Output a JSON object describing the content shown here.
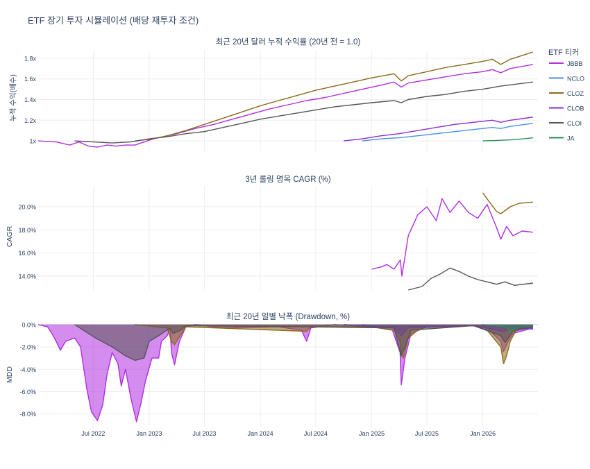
{
  "figure_title": "ETF 장기 투자 시뮬레이션 (배당 재투자 조건)",
  "legend": {
    "title": "ETF 티커",
    "placement": "right",
    "items": [
      {
        "name": "JBBB",
        "color": "#b02ee0"
      },
      {
        "name": "NCLO",
        "color": "#4a8ee8"
      },
      {
        "name": "CLOZ",
        "color": "#8a6a1a"
      },
      {
        "name": "CLOB",
        "color": "#8b2ad6"
      },
      {
        "name": "CLOI",
        "color": "#555555"
      },
      {
        "name": "JA",
        "color": "#2e8b57"
      }
    ]
  },
  "chart_data": [
    {
      "type": "line",
      "title": "최근 20년 달러 누적 수익률 (20년 전 = 1.0)",
      "xlabel": "",
      "ylabel": "누적 수익(배수)",
      "ylim": [
        0.9,
        1.88
      ],
      "yticks": [
        {
          "v": 1.0,
          "label": "1x"
        },
        {
          "v": 1.2,
          "label": "1.2x"
        },
        {
          "v": 1.4,
          "label": "1.4x"
        },
        {
          "v": 1.6,
          "label": "1.6x"
        },
        {
          "v": 1.8,
          "label": "1.8x"
        }
      ],
      "xlim": [
        "2022-01-01",
        "2026-07-01"
      ],
      "grid": true,
      "series": [
        {
          "name": "JBBB",
          "x": [
            "2022-01-01",
            "2022-03-01",
            "2022-04-15",
            "2022-05-15",
            "2022-06-15",
            "2022-07-15",
            "2022-08-15",
            "2022-09-15",
            "2022-10-15",
            "2022-11-15",
            "2022-12-15",
            "2023-01-15",
            "2023-02-15",
            "2023-04-01",
            "2023-06-01",
            "2023-08-01",
            "2023-10-01",
            "2023-12-01",
            "2024-02-01",
            "2024-04-01",
            "2024-06-01",
            "2024-08-01",
            "2024-10-01",
            "2024-12-01",
            "2025-02-01",
            "2025-03-15",
            "2025-04-08",
            "2025-05-01",
            "2025-07-01",
            "2025-09-01",
            "2025-11-01",
            "2026-01-01",
            "2026-02-01",
            "2026-03-01",
            "2026-04-01",
            "2026-06-15"
          ],
          "y": [
            1.0,
            0.99,
            0.96,
            0.99,
            0.95,
            0.94,
            0.96,
            0.95,
            0.96,
            0.96,
            0.99,
            1.02,
            1.04,
            1.07,
            1.12,
            1.16,
            1.21,
            1.26,
            1.31,
            1.35,
            1.39,
            1.42,
            1.46,
            1.5,
            1.54,
            1.57,
            1.52,
            1.56,
            1.59,
            1.62,
            1.65,
            1.67,
            1.69,
            1.66,
            1.7,
            1.74
          ]
        },
        {
          "name": "NCLO",
          "x": [
            "2024-12-01",
            "2025-02-01",
            "2025-04-01",
            "2025-06-01",
            "2025-08-01",
            "2025-10-01",
            "2025-12-01",
            "2026-02-01",
            "2026-03-01",
            "2026-04-01",
            "2026-06-15"
          ],
          "y": [
            1.0,
            1.02,
            1.03,
            1.05,
            1.07,
            1.09,
            1.11,
            1.13,
            1.12,
            1.14,
            1.17
          ]
        },
        {
          "name": "CLOZ",
          "x": [
            "2022-11-15",
            "2023-01-15",
            "2023-03-01",
            "2023-05-01",
            "2023-07-01",
            "2023-09-01",
            "2023-11-01",
            "2024-01-01",
            "2024-03-01",
            "2024-05-01",
            "2024-07-01",
            "2024-09-01",
            "2024-11-01",
            "2025-01-01",
            "2025-03-15",
            "2025-04-08",
            "2025-05-01",
            "2025-07-01",
            "2025-09-01",
            "2025-11-01",
            "2026-01-01",
            "2026-02-01",
            "2026-03-01",
            "2026-04-01",
            "2026-06-15"
          ],
          "y": [
            1.0,
            1.02,
            1.05,
            1.1,
            1.16,
            1.22,
            1.28,
            1.34,
            1.39,
            1.44,
            1.49,
            1.53,
            1.57,
            1.61,
            1.65,
            1.58,
            1.63,
            1.67,
            1.71,
            1.74,
            1.77,
            1.79,
            1.74,
            1.79,
            1.86
          ]
        },
        {
          "name": "CLOB",
          "x": [
            "2024-10-01",
            "2024-12-01",
            "2025-02-01",
            "2025-04-01",
            "2025-06-01",
            "2025-08-01",
            "2025-10-01",
            "2025-12-01",
            "2026-02-01",
            "2026-03-01",
            "2026-04-01",
            "2026-06-15"
          ],
          "y": [
            1.0,
            1.02,
            1.05,
            1.07,
            1.1,
            1.13,
            1.16,
            1.18,
            1.2,
            1.18,
            1.2,
            1.23
          ]
        },
        {
          "name": "CLOI",
          "x": [
            "2022-05-01",
            "2022-07-01",
            "2022-09-01",
            "2022-11-01",
            "2023-01-01",
            "2023-03-01",
            "2023-05-01",
            "2023-07-01",
            "2023-09-01",
            "2023-11-01",
            "2024-01-01",
            "2024-03-01",
            "2024-05-01",
            "2024-07-01",
            "2024-09-01",
            "2024-11-01",
            "2025-01-01",
            "2025-03-15",
            "2025-04-08",
            "2025-05-01",
            "2025-07-01",
            "2025-09-01",
            "2025-11-01",
            "2026-01-01",
            "2026-03-01",
            "2026-06-15"
          ],
          "y": [
            1.0,
            0.99,
            0.98,
            0.99,
            1.02,
            1.04,
            1.07,
            1.09,
            1.13,
            1.17,
            1.21,
            1.24,
            1.27,
            1.3,
            1.33,
            1.35,
            1.37,
            1.39,
            1.37,
            1.4,
            1.43,
            1.45,
            1.48,
            1.5,
            1.53,
            1.57
          ]
        },
        {
          "name": "JA",
          "x": [
            "2026-01-01",
            "2026-02-15",
            "2026-04-01",
            "2026-05-15",
            "2026-06-15"
          ],
          "y": [
            1.0,
            1.005,
            1.01,
            1.02,
            1.03
          ]
        }
      ]
    },
    {
      "type": "line",
      "title": "3년 롤링 명목 CAGR (%)",
      "xlabel": "",
      "ylabel": "CAGR",
      "ylim": [
        12.8,
        21.8
      ],
      "yticks": [
        {
          "v": 14,
          "label": "14.0%"
        },
        {
          "v": 16,
          "label": "16.0%"
        },
        {
          "v": 18,
          "label": "18.0%"
        },
        {
          "v": 20,
          "label": "20.0%"
        }
      ],
      "xlim": [
        "2022-01-01",
        "2026-07-01"
      ],
      "grid": true,
      "series": [
        {
          "name": "JBBB",
          "x": [
            "2025-01-01",
            "2025-02-01",
            "2025-02-20",
            "2025-03-15",
            "2025-04-05",
            "2025-04-10",
            "2025-05-01",
            "2025-06-01",
            "2025-07-01",
            "2025-08-01",
            "2025-08-20",
            "2025-09-15",
            "2025-10-15",
            "2025-11-15",
            "2025-12-15",
            "2026-01-15",
            "2026-02-15",
            "2026-03-01",
            "2026-03-20",
            "2026-04-10",
            "2026-05-10",
            "2026-06-15"
          ],
          "y": [
            14.6,
            14.8,
            15.0,
            14.6,
            15.4,
            14.0,
            17.5,
            19.3,
            20.0,
            18.8,
            20.7,
            19.5,
            20.5,
            19.5,
            19.0,
            20.2,
            18.2,
            17.2,
            18.3,
            17.5,
            17.9,
            17.8
          ]
        },
        {
          "name": "CLOZ",
          "x": [
            "2026-01-01",
            "2026-01-20",
            "2026-02-15",
            "2026-03-01",
            "2026-04-01",
            "2026-05-01",
            "2026-06-15"
          ],
          "y": [
            21.2,
            20.5,
            19.6,
            19.4,
            20.0,
            20.3,
            20.4
          ]
        },
        {
          "name": "CLOI",
          "x": [
            "2025-05-01",
            "2025-06-15",
            "2025-07-15",
            "2025-08-15",
            "2025-09-15",
            "2025-10-15",
            "2025-11-15",
            "2025-12-15",
            "2026-01-15",
            "2026-02-15",
            "2026-03-15",
            "2026-04-15",
            "2026-06-15"
          ],
          "y": [
            12.8,
            13.1,
            13.8,
            14.2,
            14.7,
            14.4,
            14.0,
            13.7,
            13.5,
            13.3,
            13.5,
            13.2,
            13.4
          ]
        }
      ]
    },
    {
      "type": "area",
      "title": "최근 20년 일별 낙폭 (Drawdown, %)",
      "xlabel": "",
      "ylabel": "MDD",
      "ylim": [
        -9.2,
        0.3
      ],
      "yticks": [
        {
          "v": 0,
          "label": "0.0%"
        },
        {
          "v": -2,
          "label": "-2.0%"
        },
        {
          "v": -4,
          "label": "-4.0%"
        },
        {
          "v": -6,
          "label": "-6.0%"
        },
        {
          "v": -8,
          "label": "-8.0%"
        }
      ],
      "xlim": [
        "2022-01-01",
        "2026-07-01"
      ],
      "xticks": [
        {
          "v": "2022-07-01",
          "label": "Jul 2022"
        },
        {
          "v": "2023-01-01",
          "label": "Jan 2023"
        },
        {
          "v": "2023-07-01",
          "label": "Jul 2023"
        },
        {
          "v": "2024-01-01",
          "label": "Jan 2024"
        },
        {
          "v": "2024-07-01",
          "label": "Jul 2024"
        },
        {
          "v": "2025-01-01",
          "label": "Jan 2025"
        },
        {
          "v": "2025-07-01",
          "label": "Jul 2025"
        },
        {
          "v": "2026-01-01",
          "label": "Jan 2026"
        }
      ],
      "grid": true,
      "series": [
        {
          "name": "JBBB",
          "x": [
            "2022-01-01",
            "2022-02-01",
            "2022-02-15",
            "2022-03-01",
            "2022-03-15",
            "2022-04-01",
            "2022-05-01",
            "2022-05-20",
            "2022-06-10",
            "2022-06-25",
            "2022-07-15",
            "2022-08-01",
            "2022-08-15",
            "2022-09-01",
            "2022-09-20",
            "2022-10-01",
            "2022-10-15",
            "2022-11-01",
            "2022-11-20",
            "2022-12-05",
            "2022-12-20",
            "2023-01-10",
            "2023-02-01",
            "2023-02-10",
            "2023-03-01",
            "2023-03-10",
            "2023-03-15",
            "2023-03-25",
            "2023-04-10",
            "2023-05-01",
            "2023-06-01",
            "2023-09-01",
            "2024-03-01",
            "2024-05-15",
            "2024-06-01",
            "2024-06-15",
            "2024-09-01",
            "2025-01-01",
            "2025-03-10",
            "2025-04-04",
            "2025-04-08",
            "2025-04-20",
            "2025-05-10",
            "2025-07-01",
            "2025-12-01",
            "2026-01-15",
            "2026-03-01",
            "2026-03-10",
            "2026-03-25",
            "2026-04-10",
            "2026-06-15"
          ],
          "y": [
            0,
            -0.2,
            -0.8,
            -1.5,
            -2.3,
            -1.5,
            -1.2,
            -2.0,
            -5.8,
            -7.8,
            -8.6,
            -7.2,
            -4.5,
            -2.5,
            -3.5,
            -5.5,
            -4.0,
            -6.5,
            -8.7,
            -7.0,
            -5.0,
            -3.0,
            -3.0,
            -1.5,
            -1.0,
            -0.3,
            -2.5,
            -3.6,
            -1.5,
            -0.2,
            0,
            -0.3,
            -0.2,
            -0.5,
            -1.5,
            -0.3,
            0,
            -0.2,
            -0.5,
            -2.5,
            -5.4,
            -3.0,
            -0.8,
            -0.2,
            -0.1,
            -0.3,
            -1.5,
            -2.4,
            -1.5,
            -0.8,
            -0.3
          ]
        },
        {
          "name": "NCLO",
          "x": [
            "2024-12-01",
            "2025-03-15",
            "2025-04-08",
            "2025-05-01",
            "2025-12-01",
            "2026-03-15",
            "2026-04-10",
            "2026-06-15"
          ],
          "y": [
            0,
            -0.3,
            -0.5,
            -0.2,
            -0.1,
            -0.3,
            -0.2,
            -0.3
          ]
        },
        {
          "name": "CLOZ",
          "x": [
            "2022-11-15",
            "2023-03-01",
            "2023-03-15",
            "2023-03-25",
            "2023-05-01",
            "2024-06-01",
            "2024-06-15",
            "2025-01-01",
            "2025-03-15",
            "2025-04-04",
            "2025-04-08",
            "2025-04-15",
            "2025-05-01",
            "2025-06-01",
            "2025-07-01",
            "2025-12-01",
            "2026-01-15",
            "2026-03-01",
            "2026-03-10",
            "2026-03-20",
            "2026-04-01",
            "2026-04-20",
            "2026-06-15"
          ],
          "y": [
            0,
            -0.3,
            -1.5,
            -1.8,
            -0.2,
            -0.6,
            -0.2,
            -0.2,
            -0.5,
            -1.5,
            -2.6,
            -3.0,
            -1.2,
            -0.5,
            -0.2,
            -0.1,
            -0.5,
            -2.0,
            -3.5,
            -2.8,
            -1.5,
            -0.5,
            -0.2
          ]
        },
        {
          "name": "CLOB",
          "x": [
            "2024-10-01",
            "2025-03-15",
            "2025-04-08",
            "2025-05-01",
            "2025-12-01",
            "2026-03-10",
            "2026-04-10",
            "2026-06-15"
          ],
          "y": [
            0,
            -0.3,
            -1.0,
            -0.3,
            -0.1,
            -0.6,
            -0.3,
            -0.4
          ]
        },
        {
          "name": "CLOI",
          "x": [
            "2022-05-01",
            "2022-06-15",
            "2022-07-15",
            "2022-09-01",
            "2022-10-15",
            "2022-11-15",
            "2022-12-15",
            "2023-01-01",
            "2023-02-01",
            "2023-03-10",
            "2023-03-20",
            "2023-04-15",
            "2023-05-01",
            "2024-06-01",
            "2025-03-15",
            "2025-04-08",
            "2025-04-20",
            "2025-05-10",
            "2025-12-01",
            "2026-03-01",
            "2026-03-15",
            "2026-04-10",
            "2026-06-15"
          ],
          "y": [
            0,
            -0.8,
            -1.3,
            -2.0,
            -2.8,
            -3.2,
            -3.0,
            -1.5,
            -1.0,
            -0.3,
            -0.8,
            -0.5,
            -0.1,
            -0.2,
            -0.3,
            -2.8,
            -2.0,
            -0.5,
            -0.1,
            -1.0,
            -1.6,
            -0.6,
            -0.2
          ]
        },
        {
          "name": "JA",
          "x": [
            "2026-01-01",
            "2026-03-15",
            "2026-04-05",
            "2026-05-01",
            "2026-06-15"
          ],
          "y": [
            0,
            -0.2,
            -0.6,
            -0.2,
            -0.1
          ]
        }
      ]
    }
  ]
}
